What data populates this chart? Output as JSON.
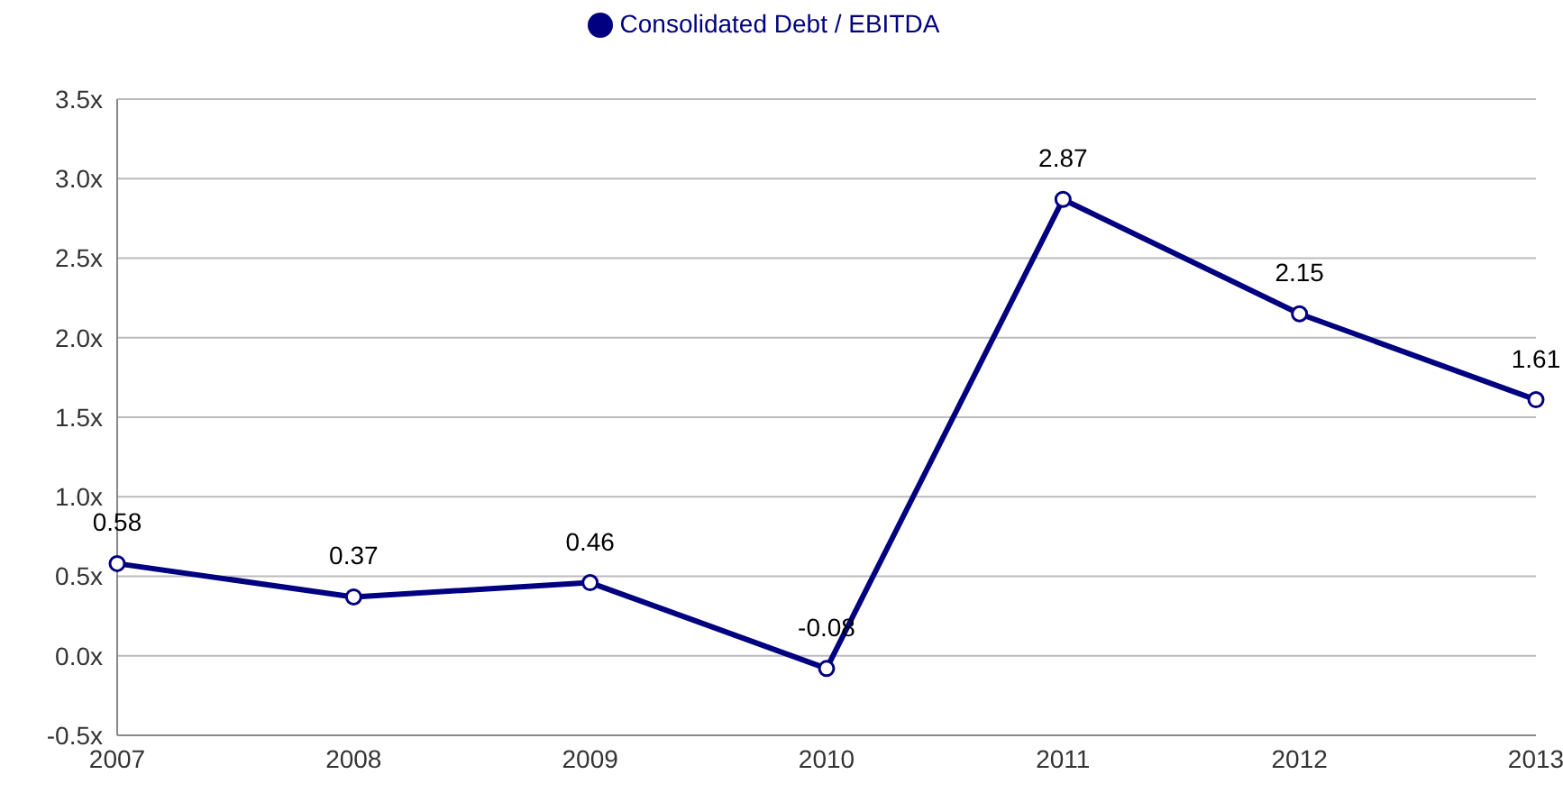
{
  "chart_data": {
    "type": "line",
    "categories": [
      "2007",
      "2008",
      "2009",
      "2010",
      "2011",
      "2012",
      "2013"
    ],
    "series": [
      {
        "name": "Consolidated Debt / EBITDA",
        "color": "#000080",
        "values": [
          0.58,
          0.37,
          0.46,
          -0.08,
          2.87,
          2.15,
          1.61
        ]
      }
    ],
    "ylim": [
      -0.5,
      3.5
    ],
    "yticks": [
      {
        "value": -0.5,
        "label": "-0.5x"
      },
      {
        "value": 0,
        "label": "0.0x"
      },
      {
        "value": 0.5,
        "label": "0.5x"
      },
      {
        "value": 1,
        "label": "1.0x"
      },
      {
        "value": 1.5,
        "label": "1.5x"
      },
      {
        "value": 2,
        "label": "2.0x"
      },
      {
        "value": 2.5,
        "label": "2.5x"
      },
      {
        "value": 3,
        "label": "3.0x"
      },
      {
        "value": 3.5,
        "label": "3.5x"
      }
    ],
    "grid": "y",
    "legend": "top",
    "marker": "circle",
    "line_style": "solid",
    "data_labels": true
  }
}
